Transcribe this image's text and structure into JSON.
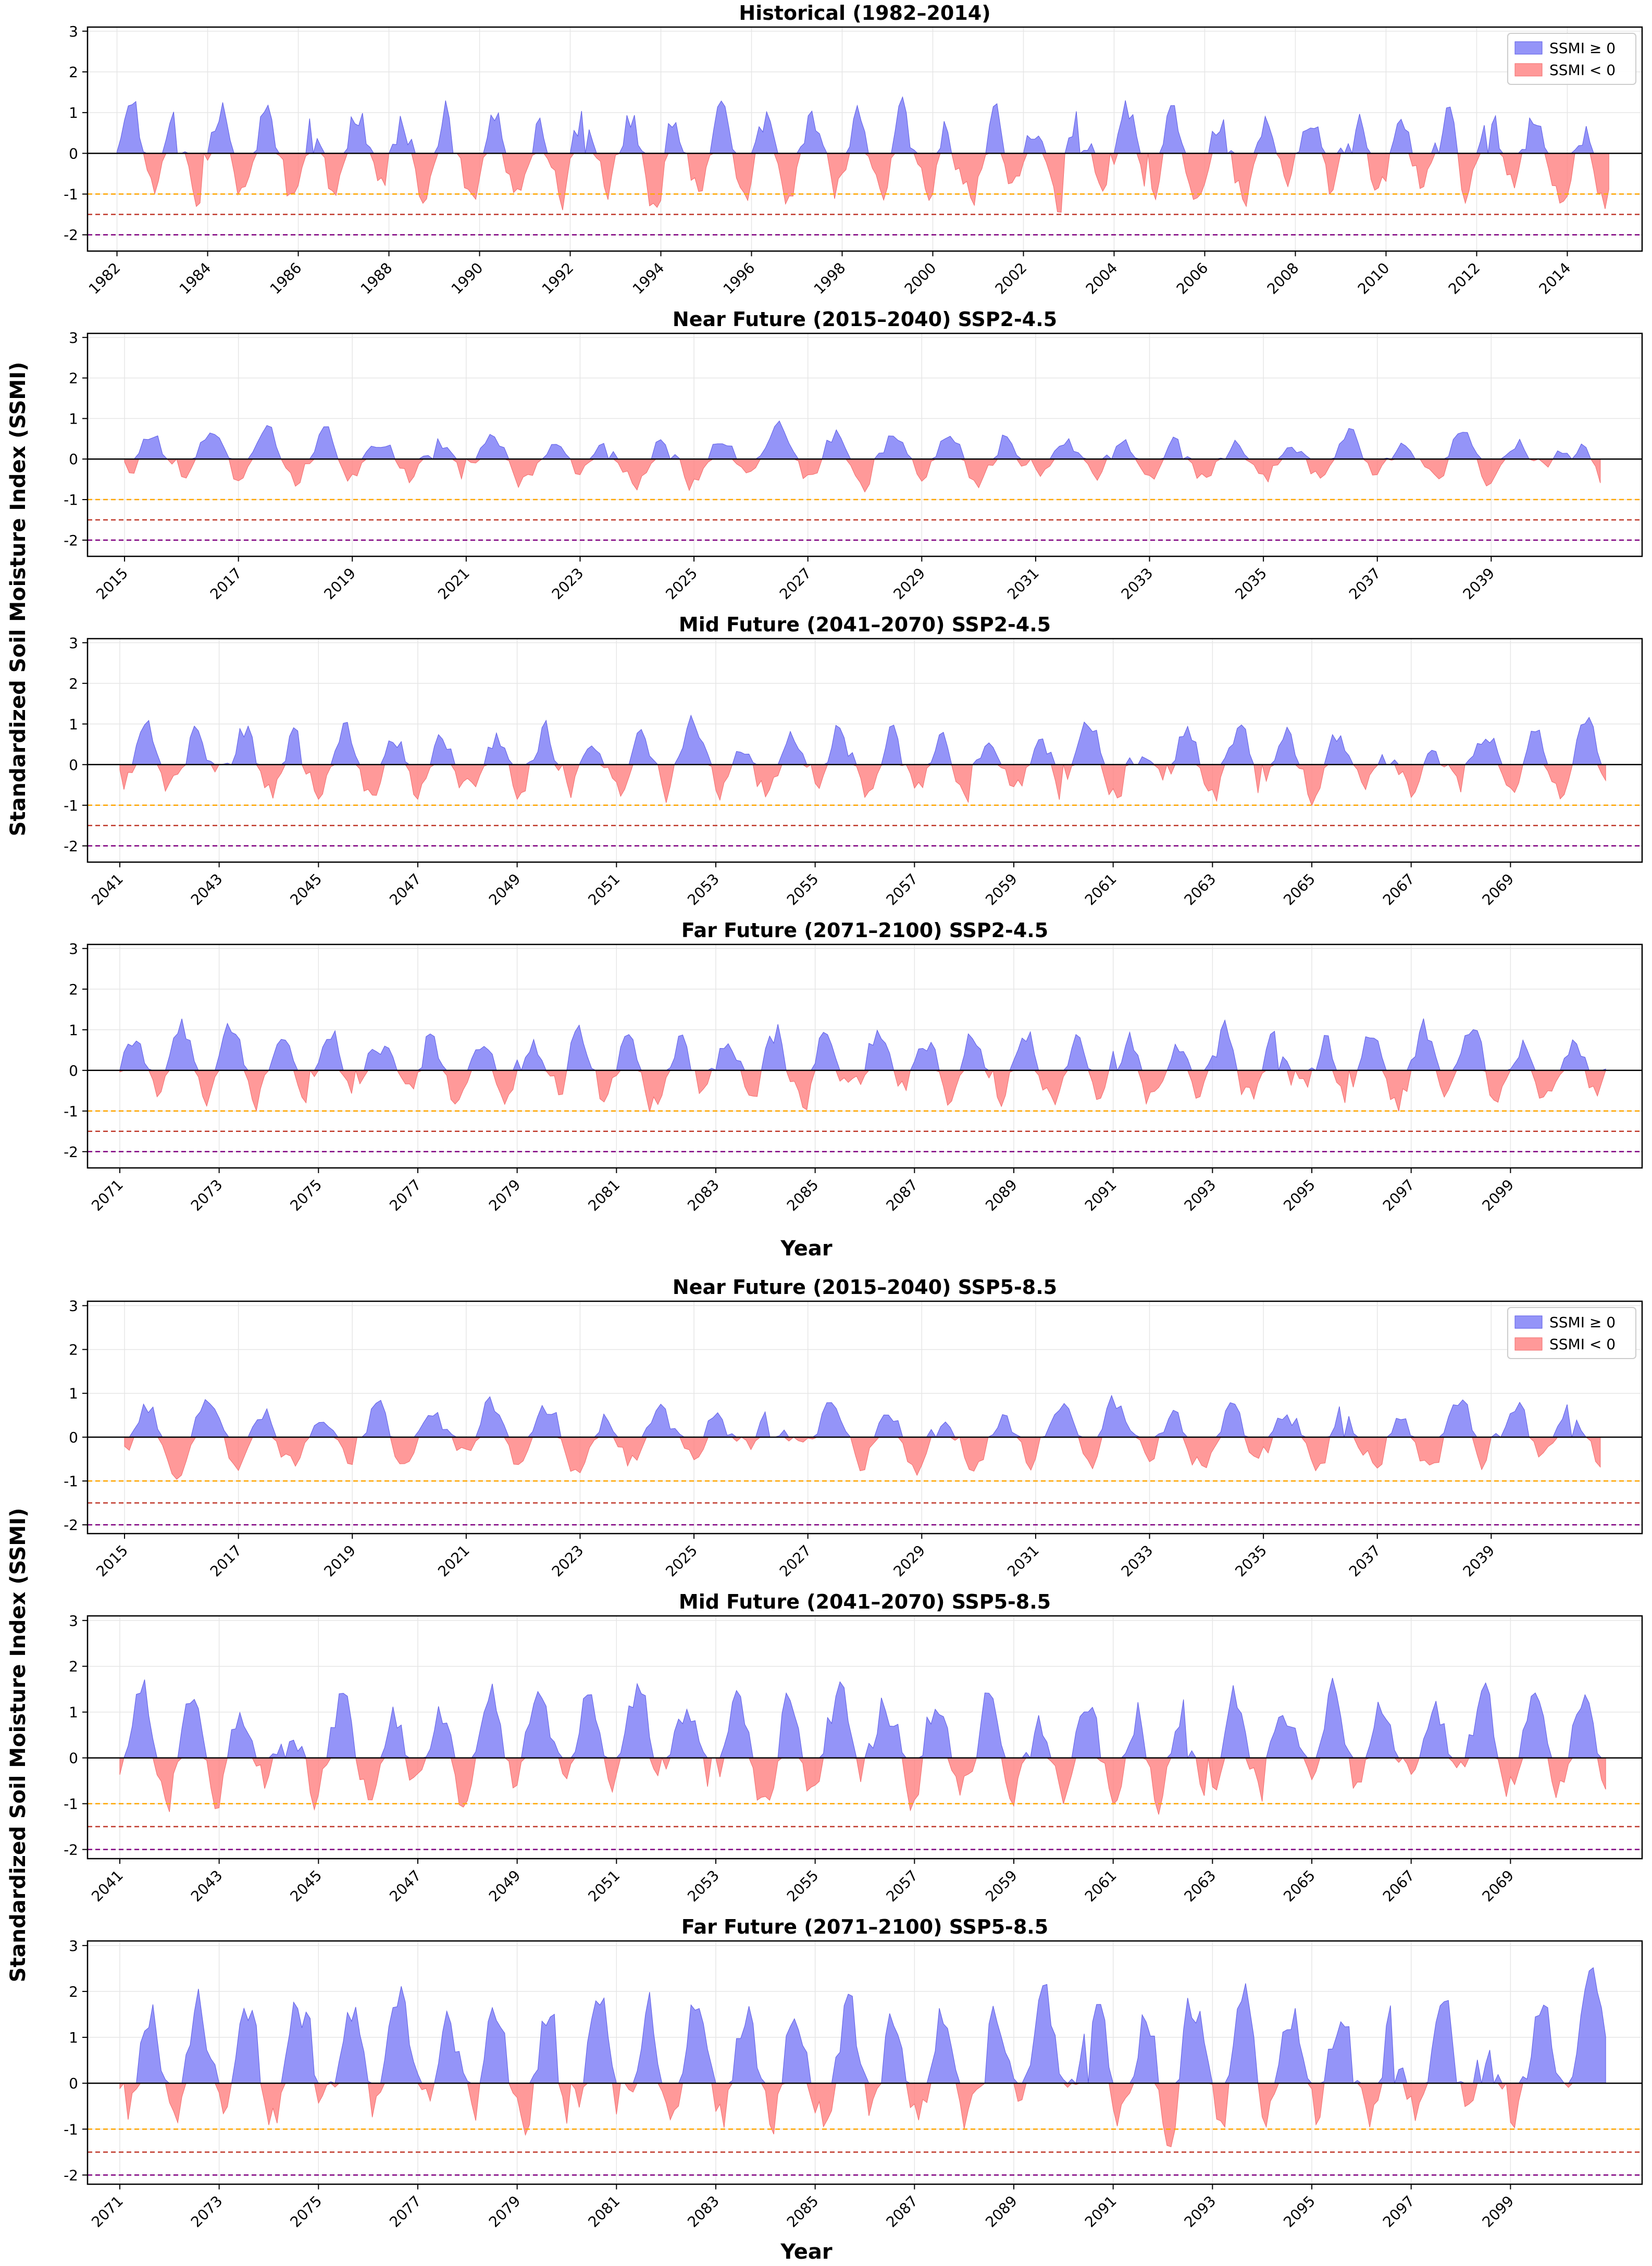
{
  "colors": {
    "positive": "#6b6bf5",
    "negative": "#ff7f7f",
    "moderate": "#ffa500",
    "severe": "#c0392b",
    "extreme": "#800080",
    "zero": "#000000",
    "grid": "#e6e6e6"
  },
  "legend": {
    "pos_label": "SSMI ≥ 0",
    "neg_label": "SSMI < 0"
  },
  "groups": [
    {
      "ylabel": "Standardized Soil Moisture Index (SSMI)",
      "xlabel": "Year"
    },
    {
      "ylabel": "Standardized Soil Moisture Index (SSMI)",
      "xlabel": "Year"
    }
  ],
  "chart_data": [
    {
      "type": "area",
      "title": "Historical (1982–2014)",
      "start_year": 1982,
      "end_year": 2014,
      "tick_years": [
        "1982",
        "1984",
        "1986",
        "1988",
        "1990",
        "1992",
        "1994",
        "1996",
        "1998",
        "2000",
        "2002",
        "2004",
        "2006",
        "2008",
        "2010",
        "2012",
        "2014"
      ],
      "ylim": [
        -2.4,
        3.1
      ],
      "yticks": [
        "3",
        "2",
        "1",
        "0",
        "-1",
        "-2"
      ],
      "threshold_lines": [
        -1,
        -1.5,
        -2
      ],
      "legend": true,
      "seed": 11,
      "amp": 1.25,
      "bias": -0.05
    },
    {
      "type": "area",
      "title": "Near Future (2015–2040) SSP2-4.5",
      "start_year": 2015,
      "end_year": 2040,
      "tick_years": [
        "2015",
        "2017",
        "2019",
        "2021",
        "2023",
        "2025",
        "2027",
        "2029",
        "2031",
        "2033",
        "2035",
        "2037",
        "2039"
      ],
      "ylim": [
        -2.4,
        3.1
      ],
      "yticks": [
        "3",
        "2",
        "1",
        "0",
        "-1",
        "-2"
      ],
      "threshold_lines": [
        -1,
        -1.5,
        -2
      ],
      "legend": false,
      "seed": 23,
      "amp": 0.7,
      "bias": 0.0
    },
    {
      "type": "area",
      "title": "Mid Future (2041–2070)  SSP2-4.5",
      "start_year": 2041,
      "end_year": 2070,
      "tick_years": [
        "2041",
        "2043",
        "2045",
        "2047",
        "2049",
        "2051",
        "2053",
        "2055",
        "2057",
        "2059",
        "2061",
        "2063",
        "2065",
        "2067",
        "2069"
      ],
      "ylim": [
        -2.4,
        3.1
      ],
      "yticks": [
        "3",
        "2",
        "1",
        "0",
        "-1",
        "-2"
      ],
      "threshold_lines": [
        -1,
        -1.5,
        -2
      ],
      "legend": false,
      "seed": 37,
      "amp": 0.95,
      "bias": 0.05
    },
    {
      "type": "area",
      "title": "Far Future (2071–2100)  SSP2-4.5",
      "start_year": 2071,
      "end_year": 2100,
      "tick_years": [
        "2071",
        "2073",
        "2075",
        "2077",
        "2079",
        "2081",
        "2083",
        "2085",
        "2087",
        "2089",
        "2091",
        "2093",
        "2095",
        "2097",
        "2099"
      ],
      "ylim": [
        -2.4,
        3.1
      ],
      "yticks": [
        "3",
        "2",
        "1",
        "0",
        "-1",
        "-2"
      ],
      "threshold_lines": [
        -1,
        -1.5,
        -2
      ],
      "legend": false,
      "seed": 41,
      "amp": 1.0,
      "bias": 0.1
    },
    {
      "type": "area",
      "title": "Near Future (2015–2040) SSP5-8.5",
      "start_year": 2015,
      "end_year": 2040,
      "tick_years": [
        "2015",
        "2017",
        "2019",
        "2021",
        "2023",
        "2025",
        "2027",
        "2029",
        "2031",
        "2033",
        "2035",
        "2037",
        "2039"
      ],
      "ylim": [
        -2.2,
        3.1
      ],
      "yticks": [
        "3",
        "2",
        "1",
        "0",
        "-1",
        "-2"
      ],
      "threshold_lines": [
        -1,
        -1.5,
        -2
      ],
      "legend": true,
      "seed": 53,
      "amp": 0.8,
      "bias": 0.05
    },
    {
      "type": "area",
      "title": "Mid Future (2041–2070)  SSP5-8.5",
      "start_year": 2041,
      "end_year": 2070,
      "tick_years": [
        "2041",
        "2043",
        "2045",
        "2047",
        "2049",
        "2051",
        "2053",
        "2055",
        "2057",
        "2059",
        "2061",
        "2063",
        "2065",
        "2067",
        "2069"
      ],
      "ylim": [
        -2.2,
        3.1
      ],
      "yticks": [
        "3",
        "2",
        "1",
        "0",
        "-1",
        "-2"
      ],
      "threshold_lines": [
        -1,
        -1.5,
        -2
      ],
      "legend": false,
      "seed": 67,
      "amp": 1.25,
      "bias": 0.25
    },
    {
      "type": "area",
      "title": "Far Future (2071–2100)  SSP5-8.5",
      "start_year": 2071,
      "end_year": 2100,
      "tick_years": [
        "2071",
        "2073",
        "2075",
        "2077",
        "2079",
        "2081",
        "2083",
        "2085",
        "2087",
        "2089",
        "2091",
        "2093",
        "2095",
        "2097",
        "2099"
      ],
      "ylim": [
        -2.2,
        3.1
      ],
      "yticks": [
        "3",
        "2",
        "1",
        "0",
        "-1",
        "-2"
      ],
      "threshold_lines": [
        -1,
        -1.5,
        -2
      ],
      "legend": false,
      "seed": 79,
      "amp": 1.5,
      "bias": 0.45
    }
  ]
}
